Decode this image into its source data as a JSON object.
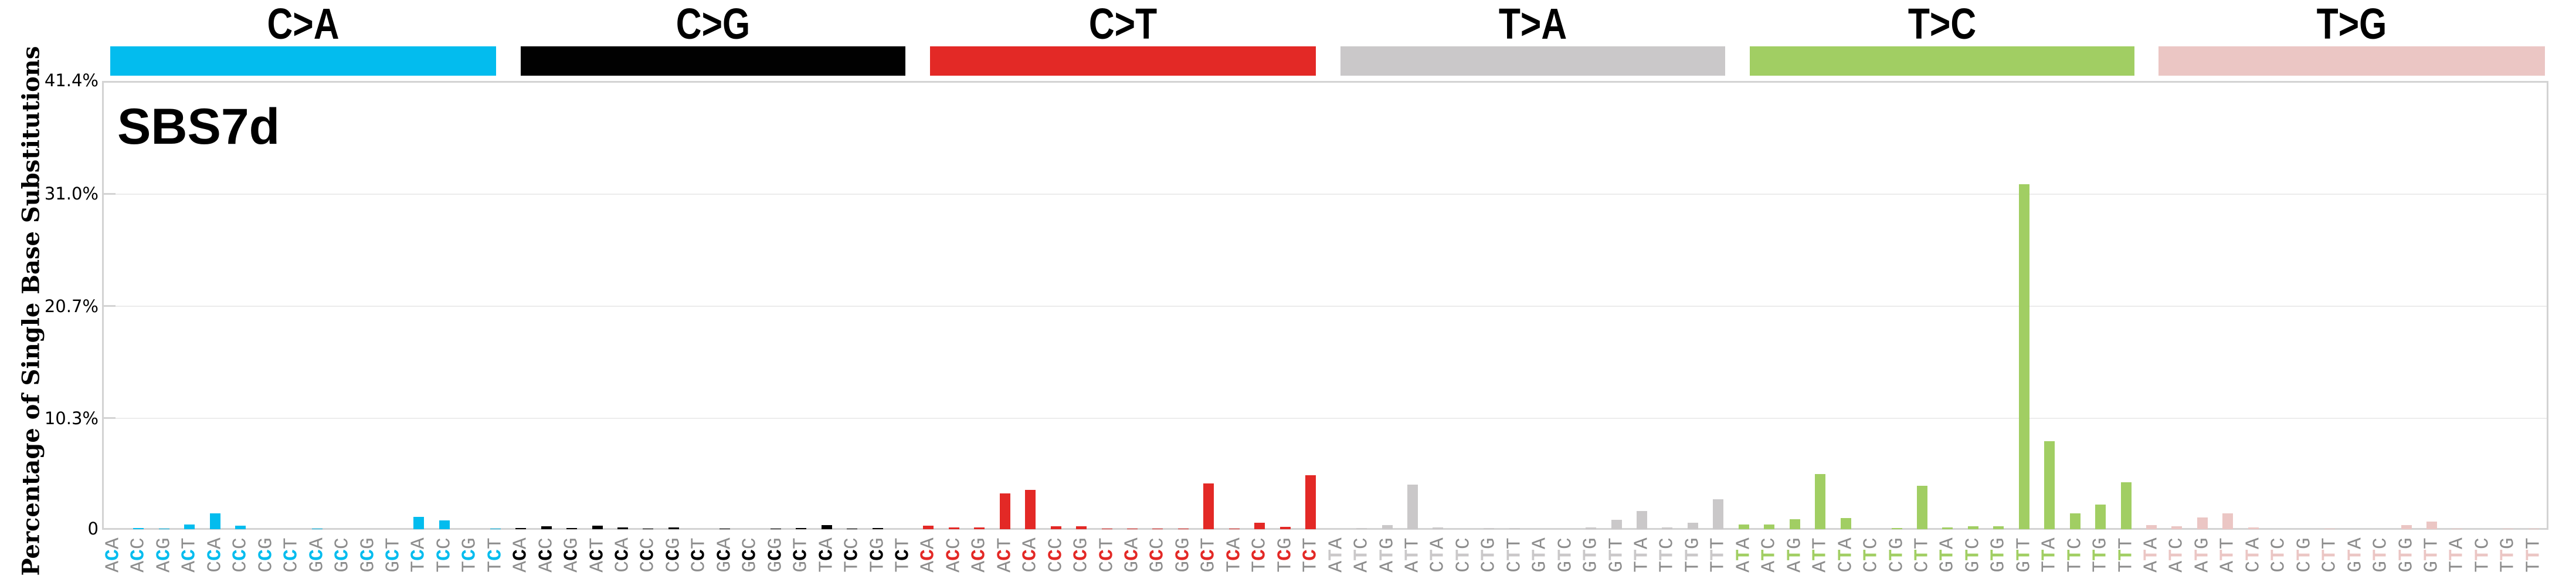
{
  "chart_data": {
    "type": "bar",
    "title": "SBS7d",
    "xlabel": "",
    "ylabel": "Percentage of Single Base Substitutions",
    "ylim": [
      0,
      41.4
    ],
    "yticks": [
      "0",
      "10.3%",
      "20.7%",
      "31.0%",
      "41.4%"
    ],
    "grid": true,
    "legend": "none",
    "groups": [
      {
        "name": "C>A",
        "color": "#03bcee",
        "ref": "C",
        "categories": [
          "ACA",
          "ACC",
          "ACG",
          "ACT",
          "CCA",
          "CCC",
          "CCG",
          "CCT",
          "GCA",
          "GCC",
          "GCG",
          "GCT",
          "TCA",
          "TCC",
          "TCG",
          "TCT"
        ],
        "values": [
          0.0,
          0.1,
          0.05,
          0.42,
          1.45,
          0.31,
          0.0,
          0.0,
          0.05,
          0.0,
          0.0,
          0.0,
          1.15,
          0.8,
          0.0,
          0.05
        ]
      },
      {
        "name": "C>G",
        "color": "#010101",
        "ref": "C",
        "categories": [
          "ACA",
          "ACC",
          "ACG",
          "ACT",
          "CCA",
          "CCC",
          "CCG",
          "CCT",
          "GCA",
          "GCC",
          "GCG",
          "GCT",
          "TCA",
          "TCC",
          "TCG",
          "TCT"
        ],
        "values": [
          0.1,
          0.28,
          0.1,
          0.35,
          0.16,
          0.05,
          0.16,
          0.0,
          0.05,
          0.0,
          0.05,
          0.1,
          0.4,
          0.05,
          0.1,
          0.0
        ]
      },
      {
        "name": "C>T",
        "color": "#e32926",
        "ref": "C",
        "categories": [
          "ACA",
          "ACC",
          "ACG",
          "ACT",
          "CCA",
          "CCC",
          "CCG",
          "CCT",
          "GCA",
          "GCC",
          "GCG",
          "GCT",
          "TCA",
          "TCC",
          "TCG",
          "TCT"
        ],
        "values": [
          0.33,
          0.15,
          0.15,
          3.3,
          3.6,
          0.27,
          0.27,
          0.05,
          0.05,
          0.05,
          0.05,
          4.2,
          0.05,
          0.6,
          0.2,
          5.0
        ]
      },
      {
        "name": "T>A",
        "color": "#cac8c9",
        "ref": "T",
        "categories": [
          "ATA",
          "ATC",
          "ATG",
          "ATT",
          "CTA",
          "CTC",
          "CTG",
          "CTT",
          "GTA",
          "GTC",
          "GTG",
          "GTT",
          "TTA",
          "TTC",
          "TTG",
          "TTT"
        ],
        "values": [
          0.0,
          0.1,
          0.4,
          4.1,
          0.15,
          0.0,
          0.1,
          0.1,
          0.0,
          0.0,
          0.15,
          0.87,
          1.7,
          0.15,
          0.6,
          2.75
        ]
      },
      {
        "name": "T>C",
        "color": "#a1ce63",
        "ref": "T",
        "categories": [
          "ATA",
          "ATC",
          "ATG",
          "ATT",
          "CTA",
          "CTC",
          "CTG",
          "CTT",
          "GTA",
          "GTC",
          "GTG",
          "GTT",
          "TTA",
          "TTC",
          "TTG",
          "TTT"
        ],
        "values": [
          0.43,
          0.43,
          0.92,
          5.1,
          1.03,
          0.0,
          0.1,
          4.0,
          0.15,
          0.27,
          0.27,
          31.8,
          8.1,
          1.45,
          2.25,
          4.35
        ]
      },
      {
        "name": "T>G",
        "color": "#ebc6c4",
        "ref": "T",
        "categories": [
          "ATA",
          "ATC",
          "ATG",
          "ATT",
          "CTA",
          "CTC",
          "CTG",
          "CTT",
          "GTA",
          "GTC",
          "GTG",
          "GTT",
          "TTA",
          "TTC",
          "TTG",
          "TTT"
        ],
        "values": [
          0.38,
          0.27,
          1.08,
          1.45,
          0.15,
          0.0,
          0.0,
          0.05,
          0.0,
          0.0,
          0.38,
          0.7,
          0.05,
          0.0,
          0.05,
          0.05
        ]
      }
    ]
  },
  "header": {
    "labels": [
      "C>A",
      "C>G",
      "C>T",
      "T>A",
      "T>C",
      "T>G"
    ]
  },
  "plot": {
    "title": "SBS7d",
    "ylabel": "Percentage of Single Base Substitutions",
    "yticks": [
      "41.4%",
      "31.0%",
      "20.7%",
      "10.3%",
      "0"
    ]
  }
}
